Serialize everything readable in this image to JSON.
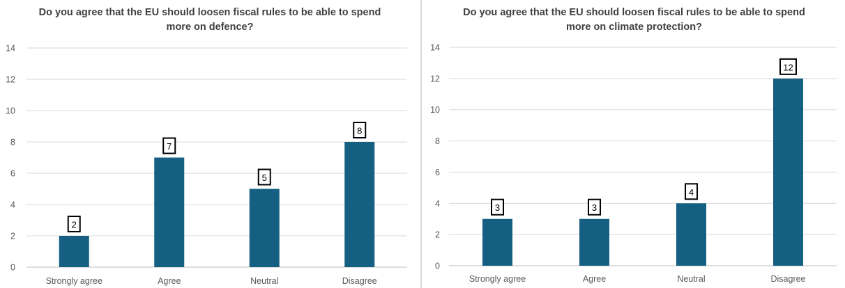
{
  "chart_data": [
    {
      "type": "bar",
      "title_lines": [
        "Do you agree that the EU should loosen fiscal rules to be able to spend",
        "more on defence?"
      ],
      "categories": [
        "Strongly agree",
        "Agree",
        "Neutral",
        "Disagree"
      ],
      "values": [
        2,
        7,
        5,
        8
      ],
      "data_labels": [
        "2",
        "7",
        "5",
        "8"
      ],
      "y_ticks": [
        "0",
        "2",
        "4",
        "6",
        "8",
        "10",
        "12",
        "14"
      ],
      "ylim": [
        0,
        14
      ],
      "grid": true,
      "legend": "none",
      "bar_color": "#145f82"
    },
    {
      "type": "bar",
      "title_lines": [
        "Do you agree that the EU should loosen fiscal rules to be able to spend",
        "more on climate protection?"
      ],
      "categories": [
        "Strongly agree",
        "Agree",
        "Neutral",
        "Disagree"
      ],
      "values": [
        3,
        3,
        4,
        12
      ],
      "data_labels": [
        "3",
        "3",
        "4",
        "12"
      ],
      "y_ticks": [
        "0",
        "2",
        "4",
        "6",
        "8",
        "10",
        "12",
        "14"
      ],
      "ylim": [
        0,
        14
      ],
      "grid": true,
      "legend": "none",
      "bar_color": "#145f82"
    }
  ]
}
